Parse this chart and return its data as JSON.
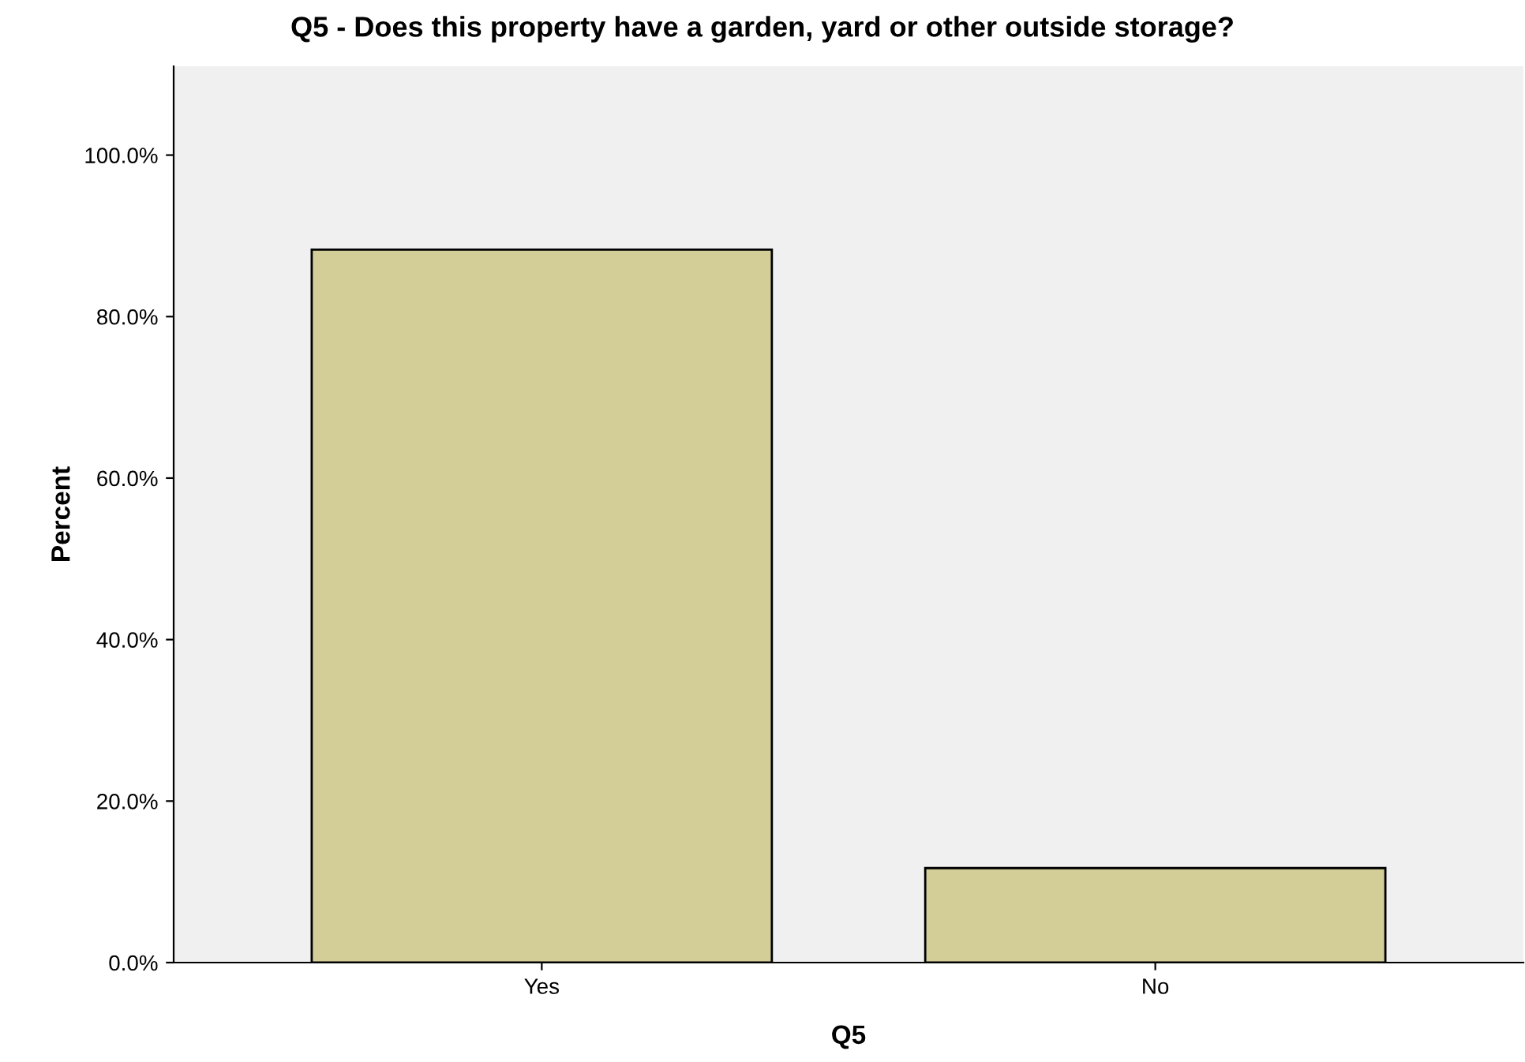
{
  "chart_data": {
    "type": "bar",
    "title": "Q5 - Does this property have a garden, yard or other outside storage?",
    "xlabel": "Q5",
    "ylabel": "Percent",
    "categories": [
      "Yes",
      "No"
    ],
    "values": [
      88.3,
      11.7
    ],
    "color": "#d3ce97",
    "ylim": [
      0,
      111
    ],
    "yticks": [
      {
        "value": 0,
        "label": "0.0%"
      },
      {
        "value": 20,
        "label": "20.0%"
      },
      {
        "value": 40,
        "label": "40.0%"
      },
      {
        "value": 60,
        "label": "60.0%"
      },
      {
        "value": 80,
        "label": "80.0%"
      },
      {
        "value": 100,
        "label": "100.0%"
      }
    ],
    "grid": false,
    "legend": false
  }
}
